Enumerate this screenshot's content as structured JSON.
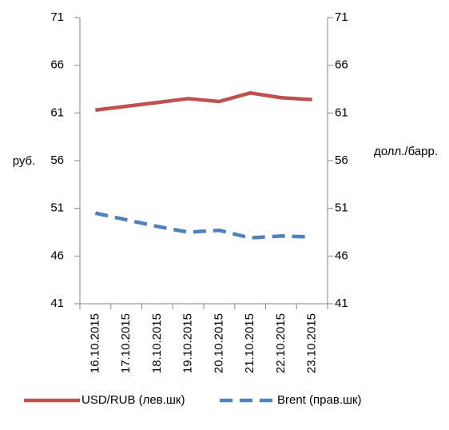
{
  "chart_data": {
    "type": "line",
    "categories": [
      "16.10.2015",
      "17.10.2015",
      "18.10.2015",
      "19.10.2015",
      "20.10.2015",
      "21.10.2015",
      "22.10.2015",
      "23.10.2015"
    ],
    "series": [
      {
        "name": "USD/RUB (лев.шк)",
        "color": "#c0504d",
        "values": [
          61.3,
          61.7,
          62.1,
          62.5,
          62.2,
          63.1,
          62.6,
          62.4
        ]
      },
      {
        "name": "Brent (прав.шк)",
        "color": "#4f81bd",
        "axis": "y2",
        "dashed": true,
        "values": [
          50.5,
          49.8,
          49.1,
          48.5,
          48.7,
          47.9,
          48.1,
          48.0
        ]
      }
    ],
    "ylabel": "руб.",
    "y2label": "долл./барр.",
    "ylim": [
      41,
      71
    ],
    "yticks": [
      41,
      46,
      51,
      56,
      61,
      66,
      71
    ],
    "y2lim": [
      41,
      71
    ],
    "y2ticks": [
      41,
      46,
      51,
      56,
      61,
      66,
      71
    ],
    "legend": "bottom"
  }
}
